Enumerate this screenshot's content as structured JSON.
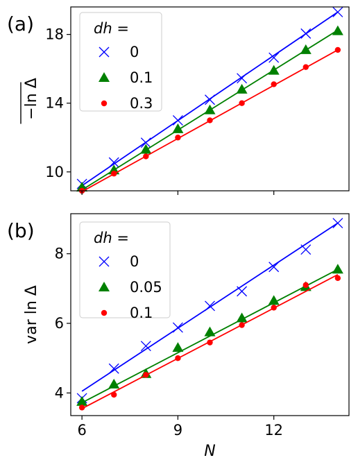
{
  "chart_data": [
    {
      "type": "scatter",
      "panel_label": "(a)",
      "title": "",
      "xlabel": "",
      "ylabel": "−ln Δ",
      "xlim": [
        5.65,
        14.35
      ],
      "ylim": [
        8.9,
        19.6
      ],
      "xticks": [
        6,
        9,
        12
      ],
      "yticks": [
        10,
        14,
        18
      ],
      "ytick_labels": [
        "10",
        "14",
        "18"
      ],
      "x_tick_labels_shown": false,
      "legend": {
        "title": "dh =",
        "placement": "top-left"
      },
      "x": [
        6,
        7,
        8,
        9,
        10,
        11,
        12,
        13,
        14
      ],
      "series": [
        {
          "name": "0",
          "color": "#0000ff",
          "marker": "x",
          "values": [
            9.3,
            10.55,
            11.7,
            13.0,
            14.2,
            15.45,
            16.65,
            18.05,
            19.3
          ],
          "fit": [
            9.2,
            19.3
          ]
        },
        {
          "name": "0.1",
          "color": "#008000",
          "marker": "triangle",
          "values": [
            9.1,
            10.1,
            11.3,
            12.5,
            13.6,
            14.8,
            15.9,
            17.1,
            18.2
          ],
          "fit": [
            8.95,
            18.25
          ]
        },
        {
          "name": "0.3",
          "color": "#ff0000",
          "marker": "dot",
          "values": [
            8.9,
            9.9,
            10.9,
            12.0,
            13.0,
            14.0,
            15.1,
            16.1,
            17.1
          ],
          "fit": [
            8.85,
            17.1
          ]
        }
      ]
    },
    {
      "type": "scatter",
      "panel_label": "(b)",
      "title": "",
      "xlabel": "N",
      "ylabel": "var ln Δ",
      "xlim": [
        5.65,
        14.35
      ],
      "ylim": [
        3.35,
        9.15
      ],
      "xticks": [
        6,
        9,
        12
      ],
      "xtick_labels": [
        "6",
        "9",
        "12"
      ],
      "yticks": [
        4,
        6,
        8
      ],
      "ytick_labels": [
        "4",
        "6",
        "8"
      ],
      "legend": {
        "title": "dh =",
        "placement": "top-left"
      },
      "x": [
        6,
        7,
        8,
        9,
        10,
        11,
        12,
        13,
        14
      ],
      "series": [
        {
          "name": "0",
          "color": "#0000ff",
          "marker": "x",
          "values": [
            3.85,
            4.7,
            5.35,
            5.88,
            6.5,
            6.92,
            7.62,
            8.12,
            8.88
          ],
          "fit": [
            4.05,
            8.88
          ]
        },
        {
          "name": "0.05",
          "color": "#008000",
          "marker": "triangle",
          "values": [
            3.75,
            4.25,
            4.55,
            5.3,
            5.75,
            6.15,
            6.65,
            7.05,
            7.55
          ],
          "fit": [
            3.72,
            7.55
          ]
        },
        {
          "name": "0.1",
          "color": "#ff0000",
          "marker": "dot",
          "values": [
            3.58,
            3.95,
            4.52,
            5.0,
            5.45,
            5.95,
            6.45,
            7.1,
            7.3
          ],
          "fit": [
            3.55,
            7.4
          ]
        }
      ]
    }
  ]
}
